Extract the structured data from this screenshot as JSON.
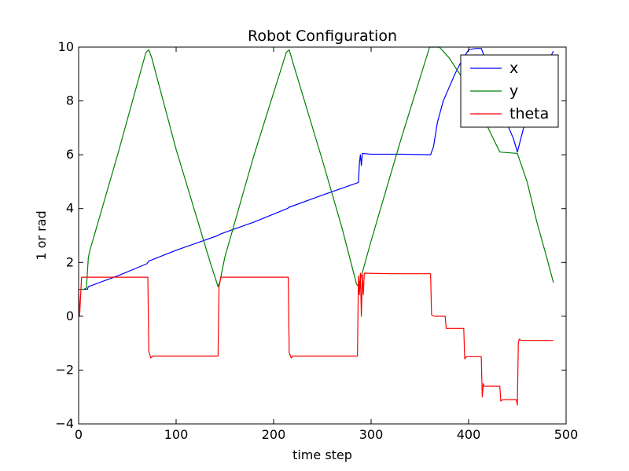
{
  "chart_data": {
    "type": "line",
    "title": "Robot Configuration",
    "xlabel": "time step",
    "ylabel": "1 or rad",
    "xlim": [
      0,
      500
    ],
    "ylim": [
      -4,
      10
    ],
    "xticks": [
      "0",
      "100",
      "200",
      "300",
      "400",
      "500"
    ],
    "yticks": [
      "−4",
      "−2",
      "0",
      "2",
      "4",
      "6",
      "8",
      "10"
    ],
    "grid": false,
    "legend_position": "top-right",
    "series": [
      {
        "name": "x",
        "color": "#0000ff",
        "points": [
          [
            0,
            1.0
          ],
          [
            9,
            1.0
          ],
          [
            10,
            1.1
          ],
          [
            40,
            1.5
          ],
          [
            70,
            1.95
          ],
          [
            72,
            2.05
          ],
          [
            100,
            2.45
          ],
          [
            143,
            3.0
          ],
          [
            145,
            3.05
          ],
          [
            180,
            3.5
          ],
          [
            214,
            4.0
          ],
          [
            216,
            4.05
          ],
          [
            250,
            4.5
          ],
          [
            287,
            4.97
          ],
          [
            288,
            5.7
          ],
          [
            289,
            6.0
          ],
          [
            290,
            5.6
          ],
          [
            291,
            6.05
          ],
          [
            300,
            6.02
          ],
          [
            330,
            6.02
          ],
          [
            361,
            6.0
          ],
          [
            364,
            6.3
          ],
          [
            368,
            7.2
          ],
          [
            374,
            8.0
          ],
          [
            380,
            8.5
          ],
          [
            386,
            9.0
          ],
          [
            393,
            9.5
          ],
          [
            400,
            9.9
          ],
          [
            407,
            9.95
          ],
          [
            413,
            9.95
          ],
          [
            420,
            9.3
          ],
          [
            426,
            8.2
          ],
          [
            432,
            7.6
          ],
          [
            440,
            7.1
          ],
          [
            446,
            6.6
          ],
          [
            450,
            6.1
          ],
          [
            455,
            6.8
          ],
          [
            460,
            7.5
          ],
          [
            468,
            8.3
          ],
          [
            475,
            9.0
          ],
          [
            482,
            9.5
          ],
          [
            487,
            9.85
          ]
        ]
      },
      {
        "name": "y",
        "color": "#008000",
        "points": [
          [
            0,
            1.0
          ],
          [
            5,
            1.0
          ],
          [
            8,
            1.05
          ],
          [
            10,
            2.2
          ],
          [
            12,
            2.5
          ],
          [
            40,
            6.0
          ],
          [
            69,
            9.8
          ],
          [
            72,
            9.9
          ],
          [
            75,
            9.6
          ],
          [
            100,
            6.2
          ],
          [
            125,
            3.2
          ],
          [
            135,
            2.0
          ],
          [
            143,
            1.1
          ],
          [
            145,
            1.3
          ],
          [
            150,
            2.2
          ],
          [
            180,
            6.0
          ],
          [
            213,
            9.8
          ],
          [
            216,
            9.9
          ],
          [
            220,
            9.4
          ],
          [
            250,
            5.8
          ],
          [
            270,
            3.3
          ],
          [
            285,
            1.2
          ],
          [
            287,
            1.1
          ],
          [
            290,
            1.5
          ],
          [
            300,
            2.8
          ],
          [
            330,
            6.5
          ],
          [
            360,
            10.0
          ],
          [
            370,
            10.0
          ],
          [
            380,
            9.6
          ],
          [
            400,
            8.5
          ],
          [
            420,
            7.0
          ],
          [
            432,
            6.1
          ],
          [
            450,
            6.05
          ],
          [
            460,
            5.0
          ],
          [
            470,
            3.5
          ],
          [
            480,
            2.2
          ],
          [
            487,
            1.25
          ]
        ]
      },
      {
        "name": "theta",
        "color": "#ff0000",
        "points": [
          [
            0,
            1.0
          ],
          [
            1,
            0.0
          ],
          [
            3,
            1.45
          ],
          [
            30,
            1.45
          ],
          [
            71,
            1.45
          ],
          [
            72,
            -1.3
          ],
          [
            74,
            -1.55
          ],
          [
            76,
            -1.48
          ],
          [
            100,
            -1.48
          ],
          [
            143,
            -1.48
          ],
          [
            144,
            1.1
          ],
          [
            146,
            1.45
          ],
          [
            180,
            1.45
          ],
          [
            215,
            1.45
          ],
          [
            216,
            -1.35
          ],
          [
            218,
            -1.55
          ],
          [
            220,
            -1.48
          ],
          [
            250,
            -1.48
          ],
          [
            286,
            -1.48
          ],
          [
            287,
            1.5
          ],
          [
            288,
            0.8
          ],
          [
            289,
            1.6
          ],
          [
            290,
            0.0
          ],
          [
            291,
            1.55
          ],
          [
            292,
            0.8
          ],
          [
            293,
            1.6
          ],
          [
            320,
            1.58
          ],
          [
            361,
            1.58
          ],
          [
            362,
            0.05
          ],
          [
            365,
            0.0
          ],
          [
            376,
            0.0
          ],
          [
            377,
            -0.45
          ],
          [
            395,
            -0.45
          ],
          [
            396,
            -1.58
          ],
          [
            398,
            -1.5
          ],
          [
            413,
            -1.5
          ],
          [
            414,
            -3.0
          ],
          [
            415,
            -2.5
          ],
          [
            416,
            -2.6
          ],
          [
            432,
            -2.6
          ],
          [
            433,
            -3.15
          ],
          [
            435,
            -3.1
          ],
          [
            449,
            -3.1
          ],
          [
            450,
            -3.3
          ],
          [
            451,
            -1.0
          ],
          [
            452,
            -0.85
          ],
          [
            454,
            -0.9
          ],
          [
            470,
            -0.9
          ],
          [
            487,
            -0.9
          ]
        ]
      }
    ]
  }
}
